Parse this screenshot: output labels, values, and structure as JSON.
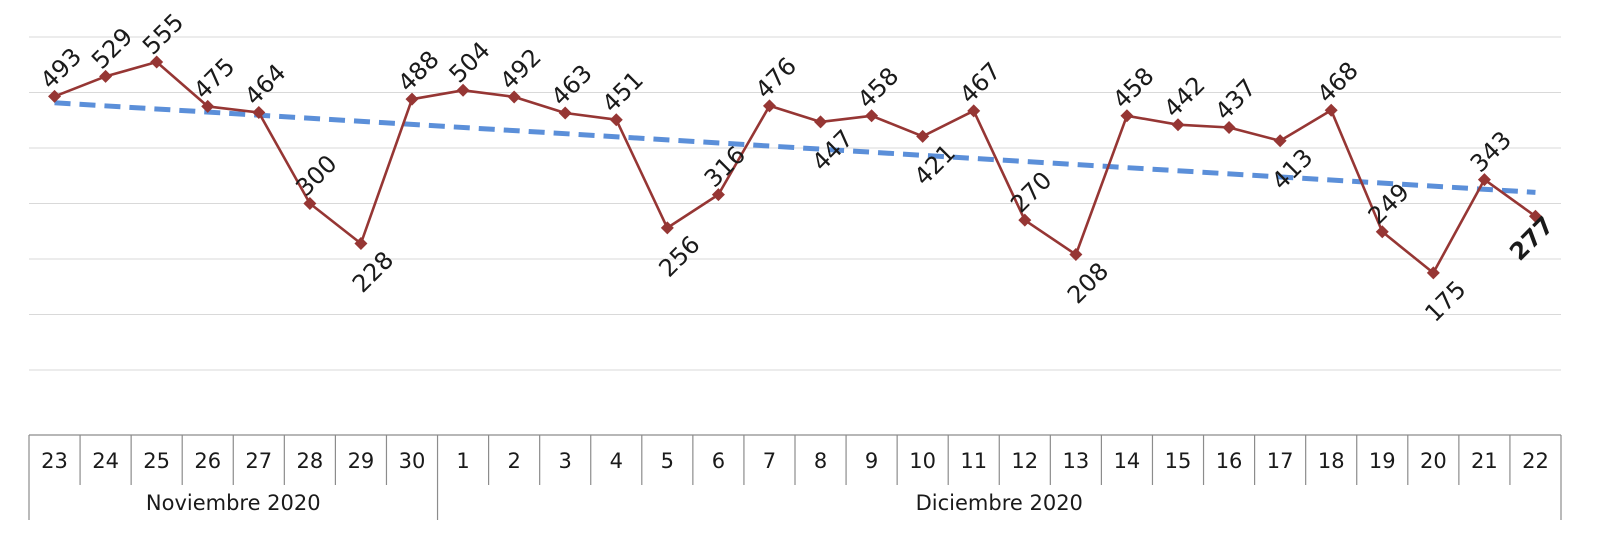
{
  "chart_data": {
    "type": "line",
    "categories": [
      "23",
      "24",
      "25",
      "26",
      "27",
      "28",
      "29",
      "30",
      "1",
      "2",
      "3",
      "4",
      "5",
      "6",
      "7",
      "8",
      "9",
      "10",
      "11",
      "12",
      "13",
      "14",
      "15",
      "16",
      "17",
      "18",
      "19",
      "20",
      "21",
      "22"
    ],
    "groups": [
      {
        "label": "Noviembre 2020",
        "count": 8
      },
      {
        "label": "Diciembre 2020",
        "count": 22
      }
    ],
    "series": [
      {
        "values": [
          493,
          529,
          555,
          475,
          464,
          300,
          228,
          488,
          504,
          492,
          463,
          451,
          256,
          316,
          476,
          447,
          458,
          421,
          467,
          270,
          208,
          458,
          442,
          437,
          413,
          468,
          249,
          175,
          343,
          277
        ],
        "color": "#963634",
        "marker": "diamond"
      }
    ],
    "trendline": {
      "type": "linear",
      "color": "#5b8fd9",
      "style": "dashed"
    },
    "data_labels": [
      "493",
      "529",
      "555",
      "475",
      "464",
      "300",
      "228",
      "488",
      "504",
      "492",
      "463",
      "451",
      "256",
      "316",
      "476",
      "447",
      "458",
      "421",
      "467",
      "270",
      "208",
      "458",
      "442",
      "437",
      "413",
      "468",
      "249",
      "175",
      "343",
      "277"
    ],
    "last_label_bold": true,
    "ylim": [
      0,
      600
    ],
    "grid": true
  }
}
